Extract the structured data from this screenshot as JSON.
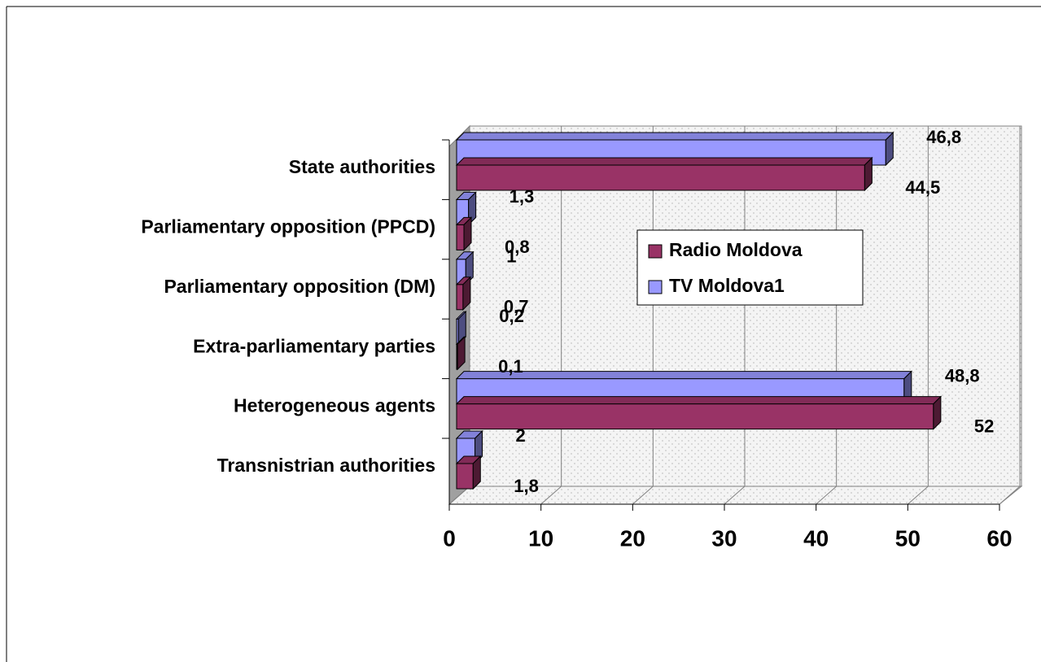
{
  "chart_data": {
    "type": "bar3d_horizontal",
    "categories": [
      "State authorities",
      "Parliamentary opposition (PPCD)",
      "Parliamentary opposition (DM)",
      "Extra-parliamentary parties",
      "Heterogeneous agents",
      "Transnistrian authorities"
    ],
    "series": [
      {
        "name": "Radio Moldova",
        "color": "#993366",
        "values": [
          44.5,
          0.8,
          0.7,
          0.1,
          52,
          1.8
        ],
        "value_labels": [
          "44,5",
          "0,8",
          "0,7",
          "0,1",
          "52",
          "1,8"
        ]
      },
      {
        "name": "TV Moldova1",
        "color": "#9999ff",
        "values": [
          46.8,
          1.3,
          1,
          0.2,
          48.8,
          2
        ],
        "value_labels": [
          "46,8",
          "1,3",
          "1",
          "0,2",
          "48,8",
          "2"
        ]
      }
    ],
    "xlim": [
      0,
      60
    ],
    "xticks": [
      0,
      10,
      20,
      30,
      40,
      50,
      60
    ],
    "grid": true,
    "legend": "center"
  }
}
